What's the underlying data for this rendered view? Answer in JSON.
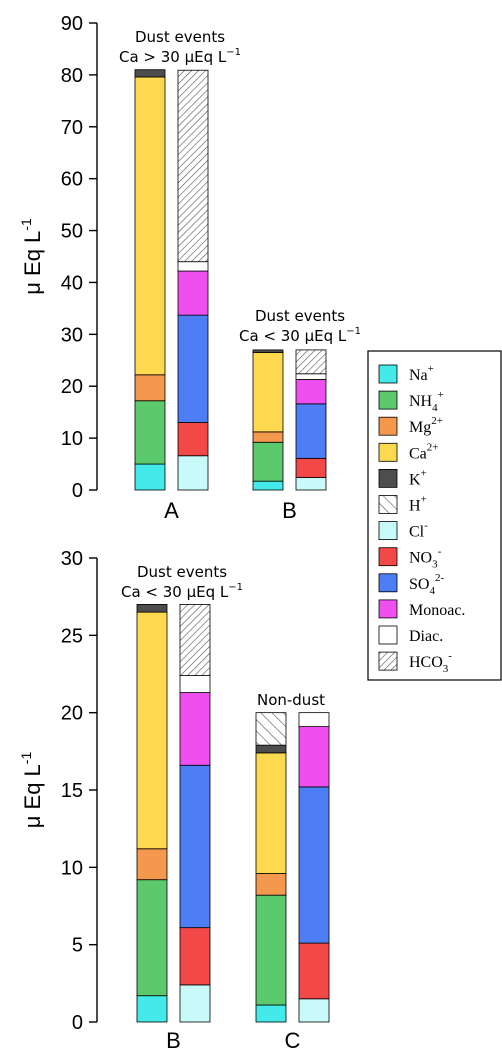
{
  "chart_data": [
    {
      "type": "bar",
      "stacked": true,
      "ylabel": "μ Eq L",
      "ylabel_sup": "-1",
      "ylim": [
        0,
        90
      ],
      "yticks": [
        "0",
        "10",
        "20",
        "30",
        "40",
        "50",
        "60",
        "70",
        "80",
        "90"
      ],
      "categories": [
        "A",
        "B"
      ],
      "annotations": [
        {
          "line1": "Dust events",
          "line2": "Ca > 30 μEq L",
          "sup": "−1"
        },
        {
          "line1": "Dust events",
          "line2": "Ca < 30 μEq L",
          "sup": "−1"
        }
      ],
      "groups": [
        {
          "category": "A",
          "cations": [
            {
              "species": "Na+",
              "value": 5.0
            },
            {
              "species": "NH4+",
              "value": 12.2
            },
            {
              "species": "Mg2+",
              "value": 5.0
            },
            {
              "species": "Ca2+",
              "value": 57.4
            },
            {
              "species": "K+",
              "value": 1.4
            }
          ],
          "anions": [
            {
              "species": "Cl-",
              "value": 6.6
            },
            {
              "species": "NO3-",
              "value": 6.4
            },
            {
              "species": "SO42-",
              "value": 20.7
            },
            {
              "species": "Monoac.",
              "value": 8.5
            },
            {
              "species": "Diac.",
              "value": 1.8
            },
            {
              "species": "HCO3-",
              "value": 36.9
            }
          ]
        },
        {
          "category": "B",
          "cations": [
            {
              "species": "Na+",
              "value": 1.7
            },
            {
              "species": "NH4+",
              "value": 7.5
            },
            {
              "species": "Mg2+",
              "value": 2.0
            },
            {
              "species": "Ca2+",
              "value": 15.3
            },
            {
              "species": "K+",
              "value": 0.5
            }
          ],
          "anions": [
            {
              "species": "Cl-",
              "value": 2.4
            },
            {
              "species": "NO3-",
              "value": 3.7
            },
            {
              "species": "SO42-",
              "value": 10.5
            },
            {
              "species": "Monoac.",
              "value": 4.7
            },
            {
              "species": "Diac.",
              "value": 1.1
            },
            {
              "species": "HCO3-",
              "value": 4.6
            }
          ]
        }
      ]
    },
    {
      "type": "bar",
      "stacked": true,
      "ylabel": "μ Eq L",
      "ylabel_sup": "-1",
      "ylim": [
        0,
        30
      ],
      "yticks": [
        "0",
        "5",
        "10",
        "15",
        "20",
        "25",
        "30"
      ],
      "categories": [
        "B",
        "C"
      ],
      "annotations": [
        {
          "line1": "Dust events",
          "line2": "Ca < 30 μEq L",
          "sup": "−1"
        },
        {
          "line1": "Non-dust",
          "line2": "",
          "sup": ""
        }
      ],
      "groups": [
        {
          "category": "B",
          "cations": [
            {
              "species": "Na+",
              "value": 1.7
            },
            {
              "species": "NH4+",
              "value": 7.5
            },
            {
              "species": "Mg2+",
              "value": 2.0
            },
            {
              "species": "Ca2+",
              "value": 15.3
            },
            {
              "species": "K+",
              "value": 0.5
            }
          ],
          "anions": [
            {
              "species": "Cl-",
              "value": 2.4
            },
            {
              "species": "NO3-",
              "value": 3.7
            },
            {
              "species": "SO42-",
              "value": 10.5
            },
            {
              "species": "Monoac.",
              "value": 4.7
            },
            {
              "species": "Diac.",
              "value": 1.1
            },
            {
              "species": "HCO3-",
              "value": 4.6
            }
          ]
        },
        {
          "category": "C",
          "cations": [
            {
              "species": "Na+",
              "value": 1.1
            },
            {
              "species": "NH4+",
              "value": 7.1
            },
            {
              "species": "Mg2+",
              "value": 1.4
            },
            {
              "species": "Ca2+",
              "value": 7.8
            },
            {
              "species": "K+",
              "value": 0.5
            },
            {
              "species": "H+",
              "value": 2.1
            }
          ],
          "anions": [
            {
              "species": "Cl-",
              "value": 1.5
            },
            {
              "species": "NO3-",
              "value": 3.6
            },
            {
              "species": "SO42-",
              "value": 10.1
            },
            {
              "species": "Monoac.",
              "value": 3.9
            },
            {
              "species": "Diac.",
              "value": 0.9
            }
          ]
        }
      ]
    }
  ],
  "legend": {
    "placement": "right",
    "entries": [
      {
        "species": "Na+",
        "base": "Na",
        "sub": "",
        "sup": "+",
        "color": "#44eaea",
        "pattern": "solid"
      },
      {
        "species": "NH4+",
        "base": "NH",
        "sub": "4",
        "sup": "+",
        "color": "#5cc96c",
        "pattern": "solid"
      },
      {
        "species": "Mg2+",
        "base": "Mg",
        "sub": "",
        "sup": "2+",
        "color": "#f4984e",
        "pattern": "solid"
      },
      {
        "species": "Ca2+",
        "base": "Ca",
        "sub": "",
        "sup": "2+",
        "color": "#fcd94e",
        "pattern": "solid"
      },
      {
        "species": "K+",
        "base": "K",
        "sub": "",
        "sup": "+",
        "color": "#4d4d4d",
        "pattern": "solid"
      },
      {
        "species": "H+",
        "base": "H",
        "sub": "",
        "sup": "+",
        "color": "#ffffff",
        "pattern": "hatch-wide"
      },
      {
        "species": "Cl-",
        "base": "Cl",
        "sub": "",
        "sup": "-",
        "color": "#c8fafa",
        "pattern": "solid"
      },
      {
        "species": "NO3-",
        "base": "NO",
        "sub": "3",
        "sup": "-",
        "color": "#f24848",
        "pattern": "solid"
      },
      {
        "species": "SO42-",
        "base": "SO",
        "sub": "4",
        "sup": "2-",
        "color": "#4d7ef6",
        "pattern": "solid"
      },
      {
        "species": "Monoac.",
        "base": "Monoac.",
        "sub": "",
        "sup": "",
        "color": "#f04ff0",
        "pattern": "solid"
      },
      {
        "species": "Diac.",
        "base": "Diac.",
        "sub": "",
        "sup": "",
        "color": "#ffffff",
        "pattern": "solid"
      },
      {
        "species": "HCO3-",
        "base": "HCO",
        "sub": "3",
        "sup": "-",
        "color": "#ffffff",
        "pattern": "hatch-fine"
      }
    ]
  }
}
